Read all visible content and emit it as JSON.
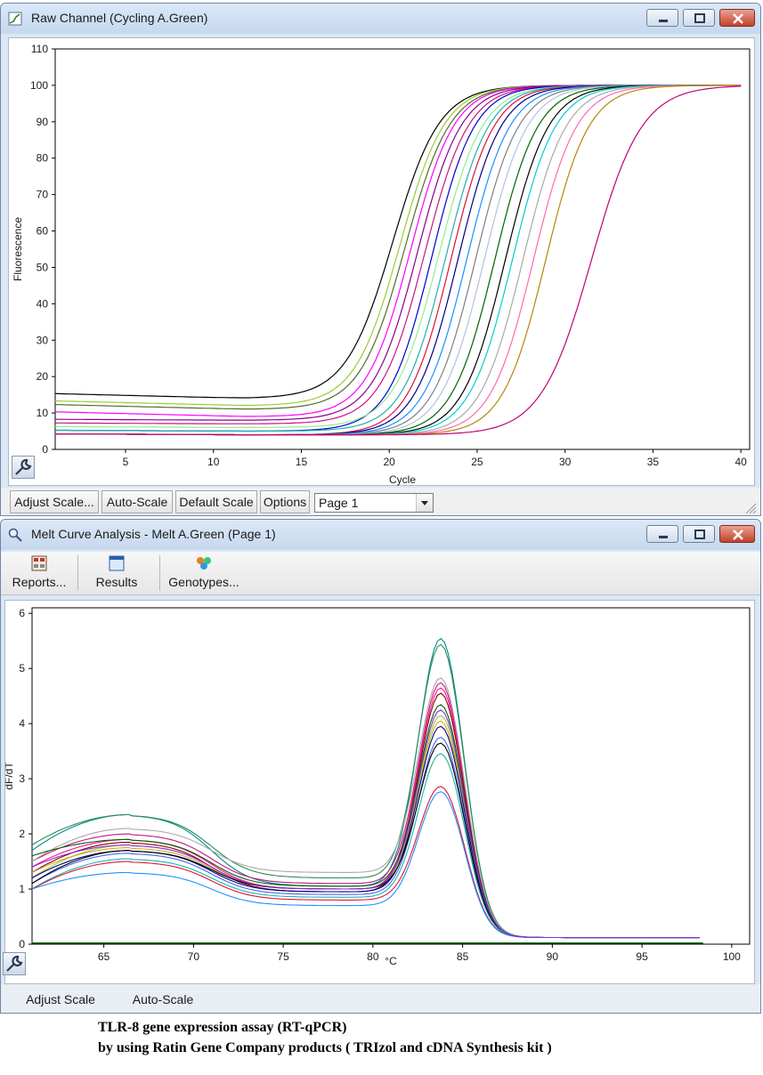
{
  "raw_window": {
    "title": "Raw Channel (Cycling A.Green)",
    "buttons": {
      "adjust_scale": "Adjust Scale...",
      "auto_scale": "Auto-Scale",
      "default_scale": "Default Scale",
      "options": "Options"
    },
    "page_select": {
      "value": "Page 1"
    }
  },
  "melt_window": {
    "title": "Melt Curve Analysis - Melt A.Green (Page 1)",
    "toolbar": {
      "reports": "Reports...",
      "results": "Results",
      "genotypes": "Genotypes..."
    },
    "buttons": {
      "adjust_scale": "Adjust Scale",
      "auto_scale": "Auto-Scale"
    }
  },
  "caption": {
    "line1": "TLR-8 gene expression assay (RT-qPCR)",
    "line2": "by using Ratin Gene Company products ( TRIzol and cDNA Synthesis kit )"
  },
  "chart_data": [
    {
      "type": "line",
      "xlabel": "Cycle",
      "ylabel": "Fluorescence",
      "xlim": [
        1,
        40.5
      ],
      "ylim": [
        0,
        110
      ],
      "xticks": [
        5,
        10,
        15,
        20,
        25,
        30,
        35,
        40
      ],
      "yticks": [
        0,
        10,
        20,
        30,
        40,
        50,
        60,
        70,
        80,
        90,
        100,
        110
      ],
      "grid": false,
      "series_note": "amplification curves",
      "series": [
        {
          "color": "#000000",
          "base": 14,
          "mid": 20.2,
          "k": 0.75
        },
        {
          "color": "#9acd32",
          "base": 12,
          "mid": 20.6,
          "k": 0.78
        },
        {
          "color": "#556b2f",
          "base": 11,
          "mid": 20.9,
          "k": 0.78
        },
        {
          "color": "#ff00ff",
          "base": 9,
          "mid": 21.2,
          "k": 0.8
        },
        {
          "color": "#8b008b",
          "base": 8,
          "mid": 21.6,
          "k": 0.8
        },
        {
          "color": "#c71585",
          "base": 7,
          "mid": 22.0,
          "k": 0.8
        },
        {
          "color": "#0000cd",
          "base": 5,
          "mid": 22.4,
          "k": 0.82
        },
        {
          "color": "#90ee90",
          "base": 6,
          "mid": 22.8,
          "k": 0.8
        },
        {
          "color": "#20b2aa",
          "base": 5,
          "mid": 23.2,
          "k": 0.82
        },
        {
          "color": "#dc143c",
          "base": 4,
          "mid": 23.5,
          "k": 0.82
        },
        {
          "color": "#00008b",
          "base": 4,
          "mid": 23.9,
          "k": 0.82
        },
        {
          "color": "#1e90ff",
          "base": 4,
          "mid": 24.4,
          "k": 0.82
        },
        {
          "color": "#808080",
          "base": 4,
          "mid": 24.9,
          "k": 0.82
        },
        {
          "color": "#b0c4de",
          "base": 4,
          "mid": 25.4,
          "k": 0.82
        },
        {
          "color": "#006400",
          "base": 4,
          "mid": 26.0,
          "k": 0.82
        },
        {
          "color": "#000000",
          "base": 4,
          "mid": 26.6,
          "k": 0.82
        },
        {
          "color": "#00ced1",
          "base": 4,
          "mid": 27.0,
          "k": 0.82
        },
        {
          "color": "#a9a9a9",
          "base": 4,
          "mid": 27.6,
          "k": 0.82
        },
        {
          "color": "#ff69b4",
          "base": 4,
          "mid": 28.2,
          "k": 0.82
        },
        {
          "color": "#b8860b",
          "base": 4,
          "mid": 28.9,
          "k": 0.82
        },
        {
          "color": "#c0007a",
          "base": 4,
          "mid": 31.5,
          "k": 0.7
        }
      ]
    },
    {
      "type": "line",
      "xlabel": "°C",
      "ylabel": "dF/dT",
      "xlim": [
        61,
        101
      ],
      "ylim": [
        0,
        6.1
      ],
      "xticks": [
        65,
        70,
        75,
        80,
        85,
        90,
        95,
        100
      ],
      "yticks": [
        0,
        1,
        2,
        3,
        4,
        5,
        6
      ],
      "grid": false,
      "series_note": "melt curves, peak near 83.8 °C",
      "series": [
        {
          "color": "#008b8b",
          "start": 1.7,
          "hump": 2.35,
          "trough": 1.05,
          "peak": 5.6
        },
        {
          "color": "#2e8b57",
          "start": 1.8,
          "hump": 2.35,
          "trough": 1.2,
          "peak": 5.5
        },
        {
          "color": "#c71585",
          "start": 1.5,
          "hump": 2.0,
          "trough": 1.1,
          "peak": 4.8
        },
        {
          "color": "#ff1493",
          "start": 1.4,
          "hump": 1.9,
          "trough": 1.0,
          "peak": 4.7
        },
        {
          "color": "#8b0000",
          "start": 1.3,
          "hump": 1.85,
          "trough": 0.95,
          "peak": 4.6
        },
        {
          "color": "#9acd32",
          "start": 1.2,
          "hump": 1.8,
          "trough": 1.0,
          "peak": 4.2
        },
        {
          "color": "#daa520",
          "start": 1.3,
          "hump": 1.75,
          "trough": 1.0,
          "peak": 4.1
        },
        {
          "color": "#00008b",
          "start": 1.2,
          "hump": 1.7,
          "trough": 0.95,
          "peak": 4.0
        },
        {
          "color": "#4169e1",
          "start": 1.1,
          "hump": 1.65,
          "trough": 0.9,
          "peak": 3.8
        },
        {
          "color": "#000000",
          "start": 1.1,
          "hump": 1.7,
          "trough": 1.0,
          "peak": 3.7
        },
        {
          "color": "#20b2aa",
          "start": 1.0,
          "hump": 1.55,
          "trough": 0.85,
          "peak": 3.5
        },
        {
          "color": "#dc143c",
          "start": 1.0,
          "hump": 1.5,
          "trough": 0.8,
          "peak": 2.9
        },
        {
          "color": "#1e90ff",
          "start": 1.0,
          "hump": 1.3,
          "trough": 0.7,
          "peak": 2.8
        },
        {
          "color": "#a9a9a9",
          "start": 1.5,
          "hump": 2.1,
          "trough": 1.3,
          "peak": 4.9
        },
        {
          "color": "#006400",
          "start": 1.6,
          "hump": 1.9,
          "trough": 1.05,
          "peak": 4.4
        },
        {
          "color": "#8a2be2",
          "start": 1.4,
          "hump": 1.8,
          "trough": 1.0,
          "peak": 4.3
        }
      ]
    }
  ]
}
